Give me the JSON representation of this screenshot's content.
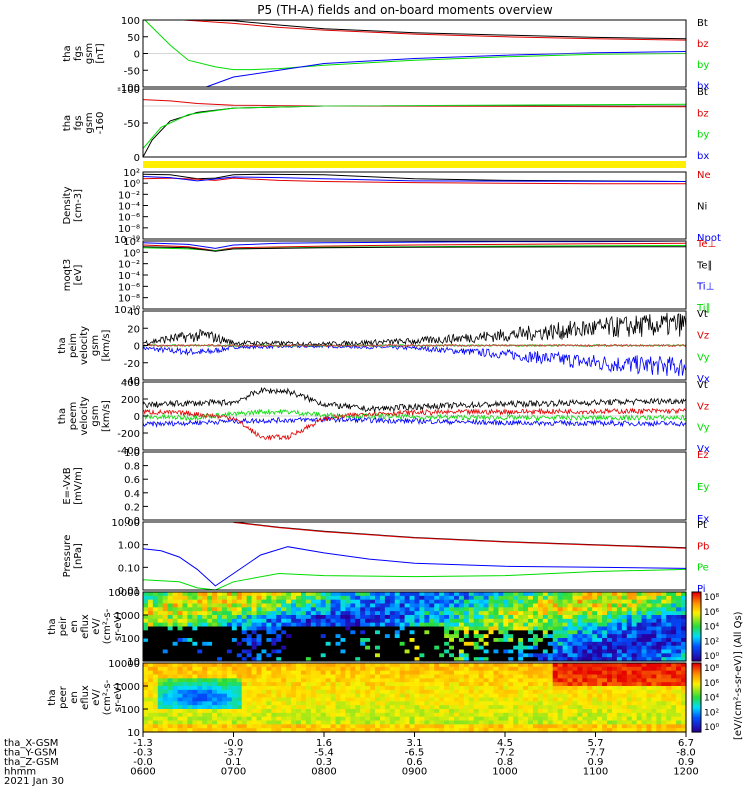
{
  "title": "P5 (TH-A) fields and on-board moments overview",
  "colors": {
    "black": "#000000",
    "red": "#e00000",
    "green": "#00dd00",
    "blue": "#0000ff",
    "yellow": "#ffee00"
  },
  "chart_data": [
    {
      "id": "fgs-gsm",
      "type": "line",
      "ylabel": [
        "tha",
        "fgs",
        "gsm",
        "[nT]"
      ],
      "ylim": [
        -100,
        100
      ],
      "yticks": [
        "100",
        "50",
        "0",
        "-50",
        "-100"
      ],
      "legend": [
        {
          "name": "Bt",
          "color": "black"
        },
        {
          "name": "bz",
          "color": "red"
        },
        {
          "name": "by",
          "color": "green"
        },
        {
          "name": "bx",
          "color": "blue"
        }
      ],
      "series": [
        {
          "name": "Bt",
          "color": "black",
          "x": [
            0.45,
            1,
            1.5,
            2,
            3,
            4,
            5,
            6
          ],
          "y": [
            100,
            98,
            85,
            74,
            62,
            55,
            48,
            44
          ]
        },
        {
          "name": "bz",
          "color": "red",
          "x": [
            0.45,
            1,
            1.5,
            2,
            3,
            4,
            5,
            6
          ],
          "y": [
            100,
            90,
            78,
            70,
            58,
            50,
            44,
            40
          ]
        },
        {
          "name": "by",
          "color": "green",
          "x": [
            0.02,
            0.3,
            0.5,
            0.8,
            1,
            1.2,
            1.5,
            2,
            3,
            4,
            5,
            6
          ],
          "y": [
            100,
            25,
            -20,
            -40,
            -48,
            -48,
            -45,
            -35,
            -20,
            -10,
            -2,
            0
          ]
        },
        {
          "name": "bx",
          "color": "blue",
          "x": [
            0.7,
            1,
            1.5,
            2,
            3,
            4,
            5,
            6
          ],
          "y": [
            -100,
            -70,
            -50,
            -30,
            -15,
            -5,
            2,
            6
          ]
        }
      ]
    },
    {
      "id": "fgs-gse",
      "type": "line",
      "ylabel": [
        "tha",
        "fgs",
        "gsm",
        "-160"
      ],
      "ylim": [
        -120,
        40
      ],
      "yticks": [
        "-100",
        "-50",
        "0"
      ],
      "legend": [
        {
          "name": "Bt",
          "color": "black"
        },
        {
          "name": "bz",
          "color": "red"
        },
        {
          "name": "by",
          "color": "green"
        },
        {
          "name": "bx",
          "color": "blue"
        }
      ],
      "series": [
        {
          "name": "Bt",
          "color": "black",
          "x": [
            0.0,
            0.1,
            0.3,
            0.6,
            1,
            2,
            6
          ],
          "y": [
            -120,
            -80,
            -35,
            -15,
            -5,
            0,
            0
          ]
        },
        {
          "name": "bz",
          "color": "red",
          "x": [
            0,
            0.3,
            0.6,
            1,
            2,
            6
          ],
          "y": [
            15,
            12,
            6,
            2,
            0,
            -2
          ]
        },
        {
          "name": "by",
          "color": "green",
          "x": [
            0.0,
            0.2,
            0.5,
            1,
            2,
            6
          ],
          "y": [
            -100,
            -50,
            -20,
            -5,
            0,
            4
          ]
        }
      ]
    },
    {
      "id": "density",
      "type": "line",
      "ylabel": [
        "Density",
        "[cm-3]"
      ],
      "log": true,
      "ylim": [
        -10,
        2
      ],
      "yticks": [
        "10²",
        "10⁰",
        "10⁻²",
        "10⁻⁴",
        "10⁻⁶",
        "10⁻⁸",
        "10⁻¹⁰"
      ],
      "legend": [
        {
          "name": "Ne",
          "color": "red"
        },
        {
          "name": "Ni",
          "color": "black"
        },
        {
          "name": "Npot",
          "color": "blue"
        }
      ],
      "series": [
        {
          "name": "Ni",
          "color": "black",
          "x": [
            0,
            0.3,
            0.6,
            0.8,
            1,
            1.3,
            2,
            3,
            4,
            5,
            6
          ],
          "y": [
            1.6,
            1.5,
            0.8,
            0.9,
            1.5,
            1.6,
            1.5,
            0.8,
            0.5,
            0.4,
            0.3
          ]
        },
        {
          "name": "Ne",
          "color": "red",
          "x": [
            0,
            0.3,
            0.6,
            0.8,
            1,
            1.5,
            2,
            3,
            4,
            5,
            6
          ],
          "y": [
            0.8,
            0.9,
            0.7,
            0.5,
            0.9,
            0.5,
            0.3,
            0.1,
            0.0,
            -0.1,
            -0.1
          ]
        },
        {
          "name": "Npot",
          "color": "blue",
          "x": [
            0,
            0.3,
            0.6,
            1,
            1.5,
            2,
            3,
            6
          ],
          "y": [
            1.2,
            1.0,
            0.4,
            1.1,
            1.0,
            0.8,
            0.4,
            0.3
          ]
        }
      ]
    },
    {
      "id": "temperature",
      "type": "line",
      "ylabel": [
        "moqt3",
        "[eV]"
      ],
      "log": true,
      "ylim": [
        -10,
        2
      ],
      "yticks": [
        "10²",
        "10⁰",
        "10⁻²",
        "10⁻⁴",
        "10⁻⁶",
        "10⁻⁸",
        "10⁻¹⁰"
      ],
      "legend": [
        {
          "name": "Te⊥",
          "color": "red"
        },
        {
          "name": "Te∥",
          "color": "black"
        },
        {
          "name": "Ti⊥",
          "color": "blue"
        },
        {
          "name": "Ti∥",
          "color": "green"
        }
      ],
      "series": [
        {
          "name": "Ti⊥",
          "color": "blue",
          "x": [
            0,
            0.5,
            0.8,
            1,
            1.5,
            2,
            3,
            4,
            5,
            6
          ],
          "y": [
            1.7,
            1.4,
            0.7,
            1.3,
            1.6,
            1.7,
            1.8,
            1.9,
            1.9,
            2.0
          ]
        },
        {
          "name": "Te⊥",
          "color": "red",
          "x": [
            0,
            0.5,
            0.8,
            1,
            2,
            3,
            4,
            5,
            6
          ],
          "y": [
            1.3,
            1.0,
            0.3,
            0.8,
            1.1,
            1.3,
            1.4,
            1.5,
            1.6
          ]
        },
        {
          "name": "Ti∥",
          "color": "green",
          "x": [
            0,
            0.5,
            0.8,
            1,
            2,
            3,
            4,
            6
          ],
          "y": [
            0.8,
            0.6,
            0.3,
            0.6,
            0.9,
            1.0,
            1.1,
            1.2
          ]
        },
        {
          "name": "Te∥",
          "color": "black",
          "x": [
            0,
            0.5,
            0.8,
            1,
            2,
            3,
            6
          ],
          "y": [
            1.0,
            0.8,
            0.2,
            0.6,
            0.8,
            0.9,
            1.0
          ]
        }
      ]
    },
    {
      "id": "peim-velocity",
      "type": "line",
      "ylabel": [
        "tha",
        "peim",
        "velocity",
        "gsm",
        "[km/s]"
      ],
      "ylim": [
        -40,
        40
      ],
      "yticks": [
        "40",
        "20",
        "0",
        "-20",
        "-40"
      ],
      "legend": [
        {
          "name": "Vt",
          "color": "black"
        },
        {
          "name": "Vz",
          "color": "red"
        },
        {
          "name": "Vy",
          "color": "green"
        },
        {
          "name": "Vx",
          "color": "blue"
        }
      ],
      "series": [
        {
          "name": "Vt",
          "color": "black",
          "x": [
            0,
            0.3,
            0.7,
            1,
            2,
            3,
            4,
            5,
            6
          ],
          "y": [
            3,
            8,
            12,
            3,
            2,
            5,
            12,
            20,
            25
          ]
        },
        {
          "name": "Vx",
          "color": "blue",
          "x": [
            0,
            0.3,
            0.7,
            1,
            2,
            3,
            4,
            5,
            6
          ],
          "y": [
            -3,
            -6,
            -8,
            -2,
            -1,
            -3,
            -10,
            -20,
            -25
          ]
        }
      ]
    },
    {
      "id": "peem-velocity",
      "type": "line",
      "ylabel": [
        "tha",
        "peem",
        "velocity",
        "gsm",
        "[km/s]"
      ],
      "ylim": [
        -400,
        400
      ],
      "yticks": [
        "400",
        "200",
        "0",
        "-200",
        "-400"
      ],
      "legend": [
        {
          "name": "Vt",
          "color": "black"
        },
        {
          "name": "Vz",
          "color": "red"
        },
        {
          "name": "Vy",
          "color": "green"
        },
        {
          "name": "Vx",
          "color": "blue"
        }
      ],
      "series": [
        {
          "name": "Vt",
          "color": "black",
          "x": [
            0,
            0.5,
            1,
            1.3,
            1.6,
            2,
            2.5,
            3,
            4,
            5,
            6
          ],
          "y": [
            130,
            150,
            160,
            300,
            290,
            140,
            80,
            110,
            140,
            160,
            180
          ]
        },
        {
          "name": "Vz",
          "color": "red",
          "x": [
            0,
            0.5,
            1,
            1.3,
            1.6,
            2,
            2.5,
            3,
            4,
            6
          ],
          "y": [
            50,
            30,
            -20,
            -250,
            -250,
            -30,
            30,
            40,
            50,
            60
          ]
        },
        {
          "name": "Vy",
          "color": "green",
          "x": [
            0,
            0.5,
            1,
            1.3,
            1.6,
            2,
            2.5,
            3,
            4,
            6
          ],
          "y": [
            -10,
            -20,
            20,
            50,
            50,
            10,
            0,
            -10,
            -20,
            -20
          ]
        },
        {
          "name": "Vx",
          "color": "blue",
          "x": [
            0,
            0.5,
            1,
            2,
            3,
            4,
            6
          ],
          "y": [
            -100,
            -80,
            -60,
            -40,
            -60,
            -80,
            -90
          ]
        }
      ]
    },
    {
      "id": "efield",
      "type": "line",
      "ylabel": [
        "E=-VxB",
        "[mV/m]"
      ],
      "ylim": [
        0,
        1.0
      ],
      "yticks": [
        "1.0",
        "0.8",
        "0.6",
        "0.4",
        "0.2",
        "0.0"
      ],
      "legend": [
        {
          "name": "Ez",
          "color": "red"
        },
        {
          "name": "Ey",
          "color": "green"
        },
        {
          "name": "Ex",
          "color": "blue"
        }
      ],
      "series": []
    },
    {
      "id": "pressure",
      "type": "line",
      "ylabel": [
        "Pressure",
        "[nPa]"
      ],
      "log": true,
      "ylim": [
        -2,
        1.3
      ],
      "yticks": [
        "10.00",
        "1.00",
        "0.10",
        "0.01"
      ],
      "legend": [
        {
          "name": "Pt",
          "color": "black"
        },
        {
          "name": "Pb",
          "color": "red"
        },
        {
          "name": "Pe",
          "color": "green"
        },
        {
          "name": "Pi",
          "color": "blue"
        }
      ],
      "series": [
        {
          "name": "Pt",
          "color": "black",
          "x": [
            1.0,
            1.5,
            2,
            2.5,
            3,
            4,
            5,
            6
          ],
          "y": [
            1.3,
            1.05,
            0.85,
            0.7,
            0.55,
            0.35,
            0.2,
            0.05
          ]
        },
        {
          "name": "Pb",
          "color": "red",
          "x": [
            1.0,
            1.5,
            2,
            2.5,
            3,
            4,
            5,
            6
          ],
          "y": [
            1.28,
            1.03,
            0.83,
            0.68,
            0.53,
            0.33,
            0.18,
            0.03
          ]
        },
        {
          "name": "Pi",
          "color": "blue",
          "x": [
            0,
            0.2,
            0.4,
            0.6,
            0.8,
            1,
            1.3,
            1.6,
            2,
            2.5,
            3,
            4,
            5,
            6
          ],
          "y": [
            0,
            -0.1,
            -0.4,
            -1.0,
            -1.8,
            -1.2,
            -0.3,
            0.1,
            -0.2,
            -0.5,
            -0.7,
            -0.85,
            -0.9,
            -0.95
          ]
        },
        {
          "name": "Pe",
          "color": "green",
          "x": [
            0,
            0.4,
            0.6,
            0.8,
            1,
            1.5,
            2,
            3,
            4,
            5,
            6
          ],
          "y": [
            -1.5,
            -1.6,
            -1.9,
            -2.0,
            -1.6,
            -1.2,
            -1.3,
            -1.35,
            -1.3,
            -1.1,
            -1.0
          ]
        }
      ]
    },
    {
      "id": "peir-spec",
      "type": "heatmap",
      "ylabel": [
        "tha",
        "peir",
        "en",
        "eflux",
        "eV/",
        "(cm²-s-",
        "sr-eV)"
      ],
      "yticks": [
        "10000",
        "1000",
        "100",
        "10"
      ]
    },
    {
      "id": "peer-spec",
      "type": "heatmap",
      "ylabel": [
        "tha",
        "peer",
        "en",
        "eflux",
        "eV/",
        "(cm²-s-",
        "sr-eV)"
      ],
      "yticks": [
        "10000",
        "1000",
        "100",
        "10"
      ]
    }
  ],
  "colorbar": {
    "label": "[eV/(cm²-s-sr-eV)] (All Qs)",
    "ticks": [
      "10⁸",
      "10⁶",
      "10⁴",
      "10²",
      "10⁰"
    ],
    "ticks2": [
      "10⁸",
      "10⁶",
      "10⁴",
      "10²",
      "10⁰"
    ]
  },
  "xaxis": {
    "rows": [
      {
        "label": "tha_X-GSM",
        "values": [
          "-1.3",
          "-0.0",
          "1.6",
          "3.1",
          "4.5",
          "5.7",
          "6.7"
        ]
      },
      {
        "label": "tha_Y-GSM",
        "values": [
          "-0.3",
          "-3.7",
          "-5.4",
          "-6.5",
          "-7.2",
          "-7.7",
          "-8.0"
        ]
      },
      {
        "label": "tha_Z-GSM",
        "values": [
          "-0.0",
          "0.1",
          "0.3",
          "0.6",
          "0.8",
          "0.9",
          "0.9"
        ]
      },
      {
        "label": "hhmm",
        "values": [
          "0600",
          "0700",
          "0800",
          "0900",
          "1000",
          "1100",
          "1200"
        ]
      }
    ],
    "date": "2021 Jan 30"
  }
}
